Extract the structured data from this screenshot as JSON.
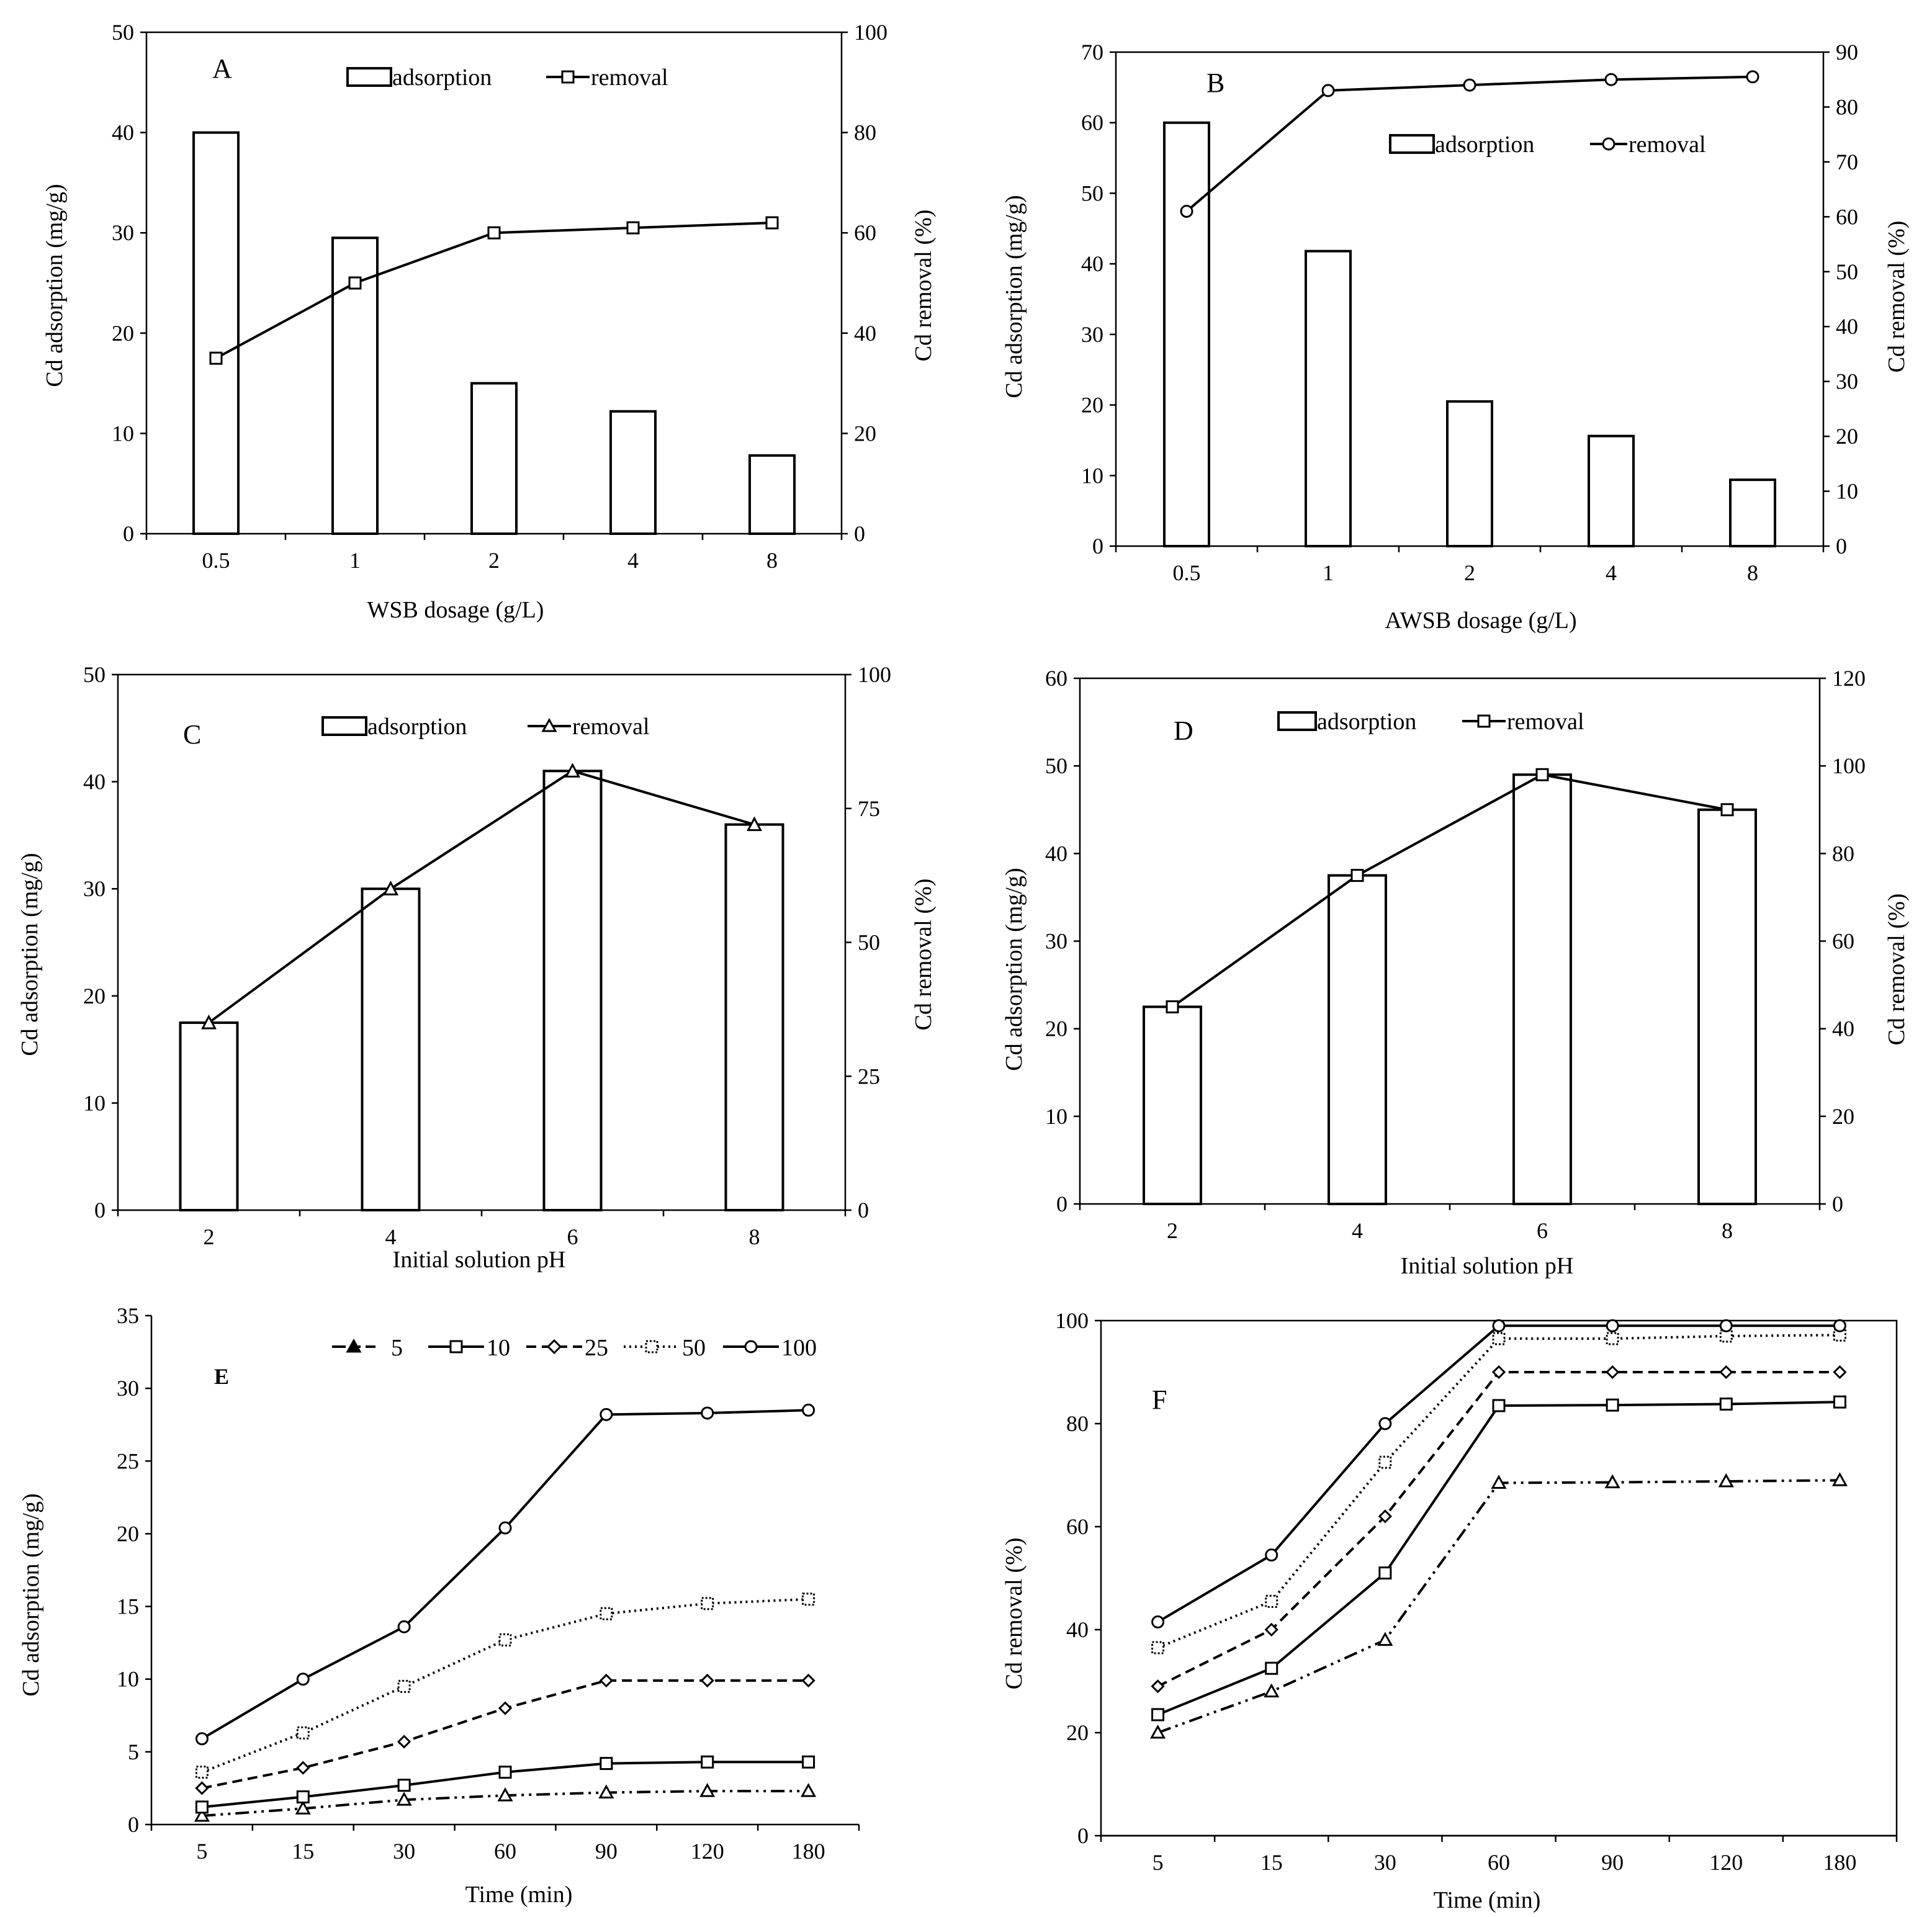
{
  "chart_data": [
    {
      "id": "A",
      "type": "bar+line",
      "letter": "A",
      "categories": [
        "0.5",
        "1",
        "2",
        "4",
        "8"
      ],
      "xlabel": "WSB dosage (g/L)",
      "ylabel": "Cd adsorption (mg/g)",
      "y2label": "Cd removal (%)",
      "ylim": [
        0,
        50
      ],
      "yticks": [
        0,
        10,
        20,
        30,
        40,
        50
      ],
      "y2lim": [
        0,
        100
      ],
      "y2ticks": [
        0,
        20,
        40,
        60,
        80,
        100
      ],
      "bar": {
        "name": "adsorption",
        "values": [
          40,
          29.5,
          15,
          12.2,
          7.8
        ]
      },
      "line": {
        "name": "removal",
        "marker": "square",
        "values": [
          35,
          50,
          60,
          61,
          62
        ]
      },
      "legend": [
        "adsorption",
        "removal"
      ]
    },
    {
      "id": "B",
      "type": "bar+line",
      "letter": "B",
      "categories": [
        "0.5",
        "1",
        "2",
        "4",
        "8"
      ],
      "xlabel": "AWSB dosage (g/L)",
      "ylabel": "Cd adsorption (mg/g)",
      "y2label": "Cd removal (%)",
      "ylim": [
        0,
        70
      ],
      "yticks": [
        0,
        10,
        20,
        30,
        40,
        50,
        60,
        70
      ],
      "y2lim": [
        0,
        90
      ],
      "y2ticks": [
        0,
        10,
        20,
        30,
        40,
        50,
        60,
        70,
        80,
        90
      ],
      "bar": {
        "name": "adsorption",
        "values": [
          60,
          41.8,
          20.5,
          15.6,
          9.4
        ]
      },
      "line": {
        "name": "removal",
        "marker": "circle",
        "values": [
          61,
          83,
          84,
          85,
          85.5
        ]
      },
      "legend": [
        "adsorption",
        "removal"
      ]
    },
    {
      "id": "C",
      "type": "bar+line",
      "letter": "C",
      "categories": [
        "2",
        "4",
        "6",
        "8"
      ],
      "xlabel": "Initial solution pH",
      "ylabel": "Cd adsorption (mg/g)",
      "y2label": "Cd removal (%)",
      "ylim": [
        0,
        50
      ],
      "yticks": [
        0,
        10,
        20,
        30,
        40,
        50
      ],
      "y2lim": [
        0,
        100
      ],
      "y2ticks": [
        0,
        25,
        50,
        75,
        100
      ],
      "bar": {
        "name": "adsorption",
        "values": [
          17.5,
          30,
          41,
          36
        ]
      },
      "line": {
        "name": "removal",
        "marker": "triangle",
        "values": [
          35,
          60,
          82,
          72
        ]
      },
      "legend": [
        "adsorption",
        "removal"
      ]
    },
    {
      "id": "D",
      "type": "bar+line",
      "letter": "D",
      "categories": [
        "2",
        "4",
        "6",
        "8"
      ],
      "xlabel": "Initial solution pH",
      "ylabel": "Cd adsorption (mg/g)",
      "y2label": "Cd removal (%)",
      "ylim": [
        0,
        60
      ],
      "yticks": [
        0,
        10,
        20,
        30,
        40,
        50,
        60
      ],
      "y2lim": [
        0,
        120
      ],
      "y2ticks": [
        0,
        20,
        40,
        60,
        80,
        100,
        120
      ],
      "bar": {
        "name": "adsorption",
        "values": [
          22.5,
          37.5,
          49,
          45
        ]
      },
      "line": {
        "name": "removal",
        "marker": "square",
        "values": [
          45,
          75,
          98,
          90
        ]
      },
      "legend": [
        "adsorption",
        "removal"
      ]
    },
    {
      "id": "E",
      "type": "line",
      "letter": "E",
      "categories": [
        "5",
        "15",
        "30",
        "60",
        "90",
        "120",
        "180"
      ],
      "xlabel": "Time (min)",
      "ylabel": "Cd adsorption (mg/g)",
      "ylim": [
        0,
        35
      ],
      "yticks": [
        0,
        5,
        10,
        15,
        20,
        25,
        30,
        35
      ],
      "series": [
        {
          "name": "5",
          "marker": "triangle",
          "dash": "dashdotdot",
          "values": [
            0.6,
            1.1,
            1.7,
            2.0,
            2.2,
            2.3,
            2.3
          ]
        },
        {
          "name": "10",
          "marker": "square",
          "dash": "solid",
          "values": [
            1.2,
            1.9,
            2.7,
            3.6,
            4.2,
            4.3,
            4.3
          ]
        },
        {
          "name": "25",
          "marker": "diamond",
          "dash": "dashed",
          "values": [
            2.5,
            3.9,
            5.7,
            8.0,
            9.9,
            9.9,
            9.9
          ]
        },
        {
          "name": "50",
          "marker": "dotsquare",
          "dash": "dotted",
          "values": [
            3.6,
            6.3,
            9.5,
            12.7,
            14.5,
            15.2,
            15.5
          ]
        },
        {
          "name": "100",
          "marker": "circle",
          "dash": "solid",
          "values": [
            5.9,
            10.0,
            13.6,
            20.4,
            28.2,
            28.3,
            28.5
          ]
        }
      ],
      "legend": [
        "5",
        "10",
        "25",
        "50",
        "100"
      ]
    },
    {
      "id": "F",
      "type": "line",
      "letter": "F",
      "categories": [
        "5",
        "15",
        "30",
        "60",
        "90",
        "120",
        "180"
      ],
      "xlabel": "Time (min)",
      "ylabel": "Cd removal (%)",
      "ylim": [
        0,
        100
      ],
      "yticks": [
        0,
        20,
        40,
        60,
        80,
        100
      ],
      "series": [
        {
          "name": "5",
          "marker": "triangle",
          "dash": "dashdotdot",
          "values": [
            20,
            28,
            38,
            68.5,
            68.6,
            68.8,
            69
          ]
        },
        {
          "name": "10",
          "marker": "square",
          "dash": "solid",
          "values": [
            23.5,
            32.5,
            51,
            83.5,
            83.6,
            83.8,
            84.2
          ]
        },
        {
          "name": "25",
          "marker": "diamond",
          "dash": "dashed",
          "values": [
            29,
            40,
            62,
            90,
            90,
            90,
            90
          ]
        },
        {
          "name": "50",
          "marker": "dotsquare",
          "dash": "dotted",
          "values": [
            36.5,
            45.5,
            72.5,
            96.5,
            96.5,
            97,
            97.2
          ]
        },
        {
          "name": "100",
          "marker": "circle",
          "dash": "solid",
          "values": [
            41.5,
            54.5,
            80,
            99,
            99,
            99,
            99
          ]
        }
      ]
    }
  ]
}
